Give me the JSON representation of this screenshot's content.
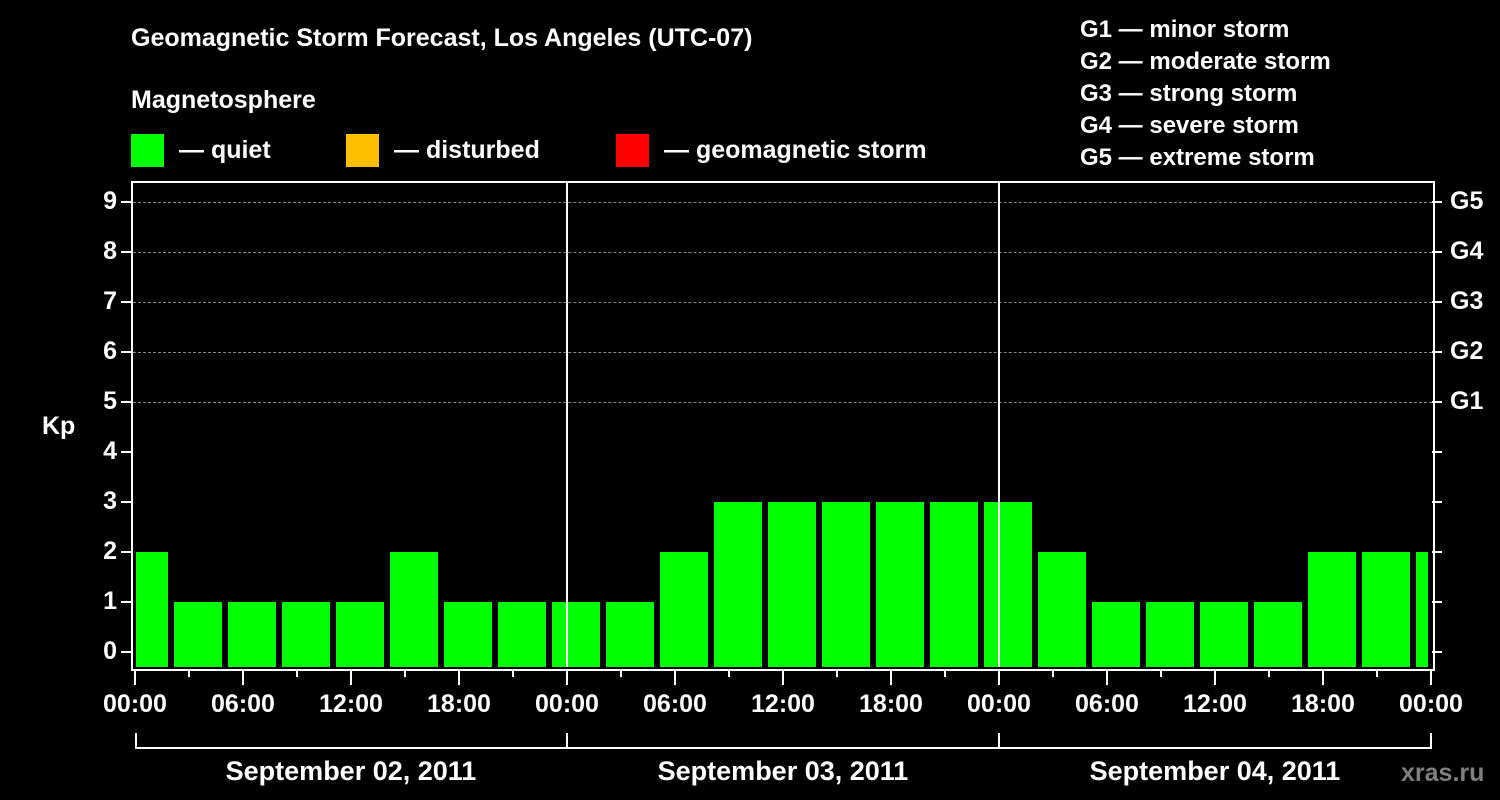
{
  "header": {
    "title": "Geomagnetic Storm Forecast, Los Angeles (UTC-07)",
    "subtitle": "Magnetosphere",
    "legend": [
      {
        "label": "— quiet",
        "color": "#00ff00"
      },
      {
        "label": "— disturbed",
        "color": "#ffbf00"
      },
      {
        "label": "— geomagnetic storm",
        "color": "#ff0000"
      }
    ],
    "g_scale": [
      "G1 — minor storm",
      "G2 — moderate storm",
      "G3 — strong storm",
      "G4 — severe storm",
      "G5 — extreme storm"
    ]
  },
  "axis": {
    "ylabel": "Kp",
    "yticks": [
      "0",
      "1",
      "2",
      "3",
      "4",
      "5",
      "6",
      "7",
      "8",
      "9"
    ],
    "right_labels": [
      {
        "kp": 5,
        "label": "G1"
      },
      {
        "kp": 6,
        "label": "G2"
      },
      {
        "kp": 7,
        "label": "G3"
      },
      {
        "kp": 8,
        "label": "G4"
      },
      {
        "kp": 9,
        "label": "G5"
      }
    ],
    "xticks": [
      "00:00",
      "06:00",
      "12:00",
      "18:00",
      "00:00",
      "06:00",
      "12:00",
      "18:00",
      "00:00",
      "06:00",
      "12:00",
      "18:00",
      "00:00"
    ],
    "dates": [
      "September 02, 2011",
      "September 03, 2011",
      "September 04, 2011"
    ]
  },
  "watermark": "xras.ru",
  "chart_data": {
    "type": "bar",
    "title": "Geomagnetic Storm Forecast, Los Angeles (UTC-07)",
    "xlabel": "",
    "ylabel": "Kp",
    "ylim": [
      0,
      9
    ],
    "grid": true,
    "legend_position": "top",
    "categories": [
      "Sep 02 00:00",
      "Sep 02 02:00",
      "Sep 02 05:00",
      "Sep 02 08:00",
      "Sep 02 11:00",
      "Sep 02 14:00",
      "Sep 02 17:00",
      "Sep 02 20:00",
      "Sep 02 23:00",
      "Sep 03 02:00",
      "Sep 03 05:00",
      "Sep 03 08:00",
      "Sep 03 11:00",
      "Sep 03 14:00",
      "Sep 03 17:00",
      "Sep 03 20:00",
      "Sep 03 23:00",
      "Sep 04 02:00",
      "Sep 04 05:00",
      "Sep 04 08:00",
      "Sep 04 11:00",
      "Sep 04 14:00",
      "Sep 04 17:00",
      "Sep 04 20:00",
      "Sep 04 23:00"
    ],
    "values": [
      2,
      1,
      1,
      1,
      1,
      2,
      1,
      1,
      1,
      1,
      2,
      3,
      3,
      3,
      3,
      3,
      3,
      2,
      1,
      1,
      1,
      1,
      2,
      2,
      2
    ],
    "bar_color": "#00ff00",
    "status": "quiet"
  }
}
